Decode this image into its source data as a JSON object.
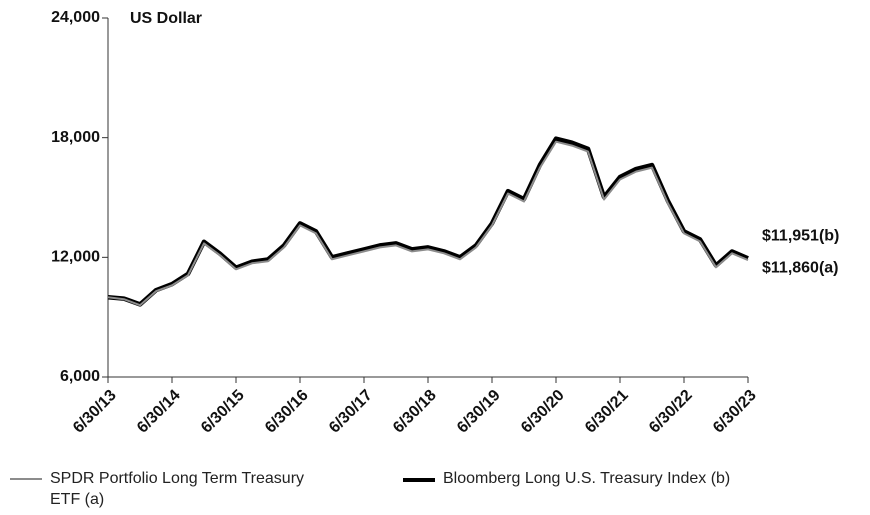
{
  "chart_data": {
    "type": "line",
    "y_label": "US Dollar",
    "categories": [
      "6/30/13",
      null,
      null,
      null,
      "6/30/14",
      null,
      null,
      null,
      "6/30/15",
      null,
      null,
      null,
      "6/30/16",
      null,
      null,
      null,
      "6/30/17",
      null,
      null,
      null,
      "6/30/18",
      null,
      null,
      null,
      "6/30/19",
      null,
      null,
      null,
      "6/30/20",
      null,
      null,
      null,
      "6/30/21",
      null,
      null,
      null,
      "6/30/22",
      null,
      null,
      null,
      "6/30/23"
    ],
    "series": [
      {
        "name": "SPDR Portfolio Long Term Treasury ETF (a)",
        "color": "#8c8c8c",
        "values": [
          10000,
          9900,
          9600,
          10300,
          10600,
          11100,
          12700,
          12100,
          11400,
          11700,
          11800,
          12500,
          13600,
          13200,
          11900,
          12100,
          12300,
          12500,
          12600,
          12300,
          12400,
          12200,
          11900,
          12500,
          13600,
          15200,
          14800,
          16500,
          17800,
          17600,
          17300,
          14900,
          15900,
          16300,
          16500,
          14700,
          13200,
          12800,
          11500,
          12200,
          11860
        ],
        "value_labels": [
          null,
          null,
          null,
          null,
          null,
          null,
          null,
          null,
          null,
          null,
          null,
          null,
          null,
          null,
          null,
          null,
          null,
          null,
          null,
          null,
          null,
          null,
          null,
          null,
          null,
          null,
          null,
          null,
          null,
          null,
          null,
          null,
          null,
          null,
          null,
          null,
          null,
          null,
          null,
          null,
          "$11,860(a)"
        ]
      },
      {
        "name": "Bloomberg Long U.S. Treasury Index (b)",
        "color": "#000000",
        "values": [
          10000,
          9930,
          9640,
          10350,
          10660,
          11170,
          12780,
          12180,
          11480,
          11780,
          11890,
          12600,
          13700,
          13300,
          12000,
          12200,
          12400,
          12600,
          12700,
          12400,
          12500,
          12300,
          12000,
          12600,
          13700,
          15320,
          14920,
          16640,
          17950,
          17750,
          17440,
          15020,
          16030,
          16430,
          16630,
          14820,
          13300,
          12900,
          11590,
          12290,
          11951
        ],
        "value_labels": [
          null,
          null,
          null,
          null,
          null,
          null,
          null,
          null,
          null,
          null,
          null,
          null,
          null,
          null,
          null,
          null,
          null,
          null,
          null,
          null,
          null,
          null,
          null,
          null,
          null,
          null,
          null,
          null,
          null,
          null,
          null,
          null,
          null,
          null,
          null,
          null,
          null,
          null,
          null,
          null,
          "$11,951(b)"
        ]
      }
    ],
    "ylim": [
      6000,
      24000
    ],
    "yticks": [
      {
        "value": 6000,
        "label": "6,000"
      },
      {
        "value": 12000,
        "label": "12,000"
      },
      {
        "value": 18000,
        "label": "18,000"
      },
      {
        "value": 24000,
        "label": "24,000"
      }
    ]
  }
}
